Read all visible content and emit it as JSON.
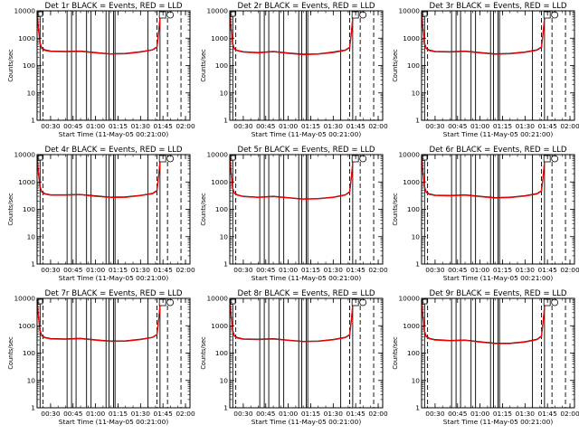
{
  "chart_data": {
    "type": "line",
    "grid": false,
    "y_scale": "log",
    "ylim": [
      1,
      10000
    ],
    "xlim": [
      "00:21:00",
      "02:03:00"
    ],
    "x_ticks": [
      "00:30",
      "00:45",
      "01:00",
      "01:15",
      "01:30",
      "01:45",
      "02:00"
    ],
    "y_ticks": [
      "1",
      "10",
      "100",
      "1000",
      "10000"
    ],
    "xlabel": "Start Time (11-May-05 00:21:00)",
    "ylabel": "Counts/sec",
    "vertical_markers_solid": [
      "00:23",
      "00:41",
      "00:44",
      "00:47",
      "00:54",
      "00:57",
      "01:07",
      "01:09",
      "01:12",
      "01:13",
      "01:35",
      "01:43"
    ],
    "vertical_markers_dashed": [
      "00:25",
      "01:41",
      "01:48",
      "01:57"
    ],
    "panels": [
      {
        "title": "Det 1r BLACK = Events, RED = LLD",
        "series": [
          {
            "color": "#000000",
            "x": [
              "00:21",
              "00:22",
              "00:23",
              "00:24",
              "00:26",
              "00:30",
              "00:40",
              "00:50",
              "01:00",
              "01:10",
              "01:20",
              "01:30",
              "01:38",
              "01:41",
              "01:42",
              "01:43",
              "01:44"
            ],
            "y": [
              9000,
              2000,
              700,
              450,
              380,
              340,
              330,
              340,
              300,
              270,
              280,
              320,
              380,
              480,
              1500,
              6000,
              10000
            ]
          },
          {
            "color": "#ff0000",
            "x": [
              "00:21",
              "00:22",
              "00:23",
              "00:24",
              "00:26",
              "00:30",
              "00:40",
              "00:50",
              "01:00",
              "01:10",
              "01:20",
              "01:30",
              "01:38",
              "01:41",
              "01:42",
              "01:43",
              "01:44"
            ],
            "y": [
              8500,
              1800,
              650,
              420,
              360,
              330,
              320,
              330,
              290,
              262,
              270,
              310,
              370,
              460,
              1400,
              5800,
              9500
            ]
          }
        ]
      },
      {
        "title": "Det 2r BLACK = Events, RED = LLD",
        "series": [
          {
            "color": "#000000",
            "x": [
              "00:21",
              "00:22",
              "00:23",
              "00:24",
              "00:26",
              "00:30",
              "00:40",
              "00:50",
              "01:00",
              "01:10",
              "01:20",
              "01:30",
              "01:38",
              "01:41",
              "01:42",
              "01:43",
              "01:44"
            ],
            "y": [
              9000,
              1800,
              650,
              420,
              360,
              320,
              300,
              330,
              290,
              260,
              270,
              310,
              370,
              470,
              1400,
              5500,
              9500
            ]
          },
          {
            "color": "#ff0000",
            "x": [
              "00:21",
              "00:22",
              "00:23",
              "00:24",
              "00:26",
              "00:30",
              "00:40",
              "00:50",
              "01:00",
              "01:10",
              "01:20",
              "01:30",
              "01:38",
              "01:41",
              "01:42",
              "01:43",
              "01:44"
            ],
            "y": [
              8500,
              1700,
              620,
              400,
              350,
              310,
              290,
              320,
              280,
              250,
              262,
              300,
              360,
              450,
              1300,
              5300,
              9000
            ]
          }
        ]
      },
      {
        "title": "Det 3r BLACK = Events, RED = LLD",
        "series": [
          {
            "color": "#000000",
            "x": [
              "00:21",
              "00:22",
              "00:23",
              "00:24",
              "00:26",
              "00:30",
              "00:40",
              "00:50",
              "01:00",
              "01:10",
              "01:20",
              "01:30",
              "01:38",
              "01:41",
              "01:42",
              "01:43",
              "01:44"
            ],
            "y": [
              9000,
              1900,
              680,
              440,
              370,
              330,
              320,
              340,
              300,
              268,
              278,
              315,
              375,
              480,
              1450,
              5800,
              9800
            ]
          },
          {
            "color": "#ff0000",
            "x": [
              "00:21",
              "00:22",
              "00:23",
              "00:24",
              "00:26",
              "00:30",
              "00:40",
              "00:50",
              "01:00",
              "01:10",
              "01:20",
              "01:30",
              "01:38",
              "01:41",
              "01:42",
              "01:43",
              "01:44"
            ],
            "y": [
              8600,
              1800,
              650,
              420,
              355,
              320,
              310,
              330,
              290,
              258,
              268,
              305,
              365,
              460,
              1380,
              5600,
              9400
            ]
          }
        ]
      },
      {
        "title": "Det 4r BLACK = Events, RED = LLD",
        "series": [
          {
            "color": "#000000",
            "x": [
              "00:21",
              "00:22",
              "00:23",
              "00:24",
              "00:26",
              "00:30",
              "00:40",
              "00:50",
              "01:00",
              "01:10",
              "01:20",
              "01:30",
              "01:38",
              "01:41",
              "01:42",
              "01:43",
              "01:44"
            ],
            "y": [
              9000,
              1900,
              700,
              450,
              380,
              340,
              340,
              350,
              310,
              280,
              285,
              325,
              385,
              490,
              1500,
              6000,
              10000
            ]
          },
          {
            "color": "#ff0000",
            "x": [
              "00:21",
              "00:22",
              "00:23",
              "00:24",
              "00:26",
              "00:30",
              "00:40",
              "00:50",
              "01:00",
              "01:10",
              "01:20",
              "01:30",
              "01:38",
              "01:41",
              "01:42",
              "01:43",
              "01:44"
            ],
            "y": [
              8600,
              1800,
              660,
              430,
              365,
              330,
              330,
              340,
              300,
              272,
              275,
              315,
              372,
              470,
              1420,
              5800,
              9600
            ]
          }
        ]
      },
      {
        "title": "Det 5r BLACK = Events, RED = LLD",
        "series": [
          {
            "color": "#000000",
            "x": [
              "00:21",
              "00:22",
              "00:23",
              "00:24",
              "00:26",
              "00:30",
              "00:40",
              "00:50",
              "01:00",
              "01:10",
              "01:20",
              "01:30",
              "01:38",
              "01:41",
              "01:42",
              "01:43",
              "01:44"
            ],
            "y": [
              8500,
              1700,
              600,
              400,
              340,
              300,
              280,
              300,
              270,
              240,
              250,
              280,
              340,
              440,
              1300,
              5200,
              9000
            ]
          },
          {
            "color": "#ff0000",
            "x": [
              "00:21",
              "00:22",
              "00:23",
              "00:24",
              "00:26",
              "00:30",
              "00:40",
              "00:50",
              "01:00",
              "01:10",
              "01:20",
              "01:30",
              "01:38",
              "01:41",
              "01:42",
              "01:43",
              "01:44"
            ],
            "y": [
              8000,
              1600,
              580,
              385,
              330,
              290,
              272,
              290,
              262,
              233,
              242,
              272,
              330,
              425,
              1250,
              5000,
              8600
            ]
          }
        ]
      },
      {
        "title": "Det 6r BLACK = Events, RED = LLD",
        "series": [
          {
            "color": "#000000",
            "x": [
              "00:21",
              "00:22",
              "00:23",
              "00:24",
              "00:26",
              "00:30",
              "00:40",
              "00:50",
              "01:00",
              "01:10",
              "01:20",
              "01:30",
              "01:38",
              "01:41",
              "01:42",
              "01:43",
              "01:44"
            ],
            "y": [
              9000,
              1900,
              680,
              440,
              370,
              330,
              320,
              340,
              300,
              268,
              278,
              315,
              375,
              480,
              1450,
              5800,
              9800
            ]
          },
          {
            "color": "#ff0000",
            "x": [
              "00:21",
              "00:22",
              "00:23",
              "00:24",
              "00:26",
              "00:30",
              "00:40",
              "00:50",
              "01:00",
              "01:10",
              "01:20",
              "01:30",
              "01:38",
              "01:41",
              "01:42",
              "01:43",
              "01:44"
            ],
            "y": [
              8600,
              1800,
              650,
              420,
              355,
              320,
              310,
              330,
              290,
              258,
              268,
              305,
              365,
              460,
              1380,
              5600,
              9400
            ]
          }
        ]
      },
      {
        "title": "Det 7r BLACK = Events, RED = LLD",
        "series": [
          {
            "color": "#000000",
            "x": [
              "00:21",
              "00:22",
              "00:23",
              "00:24",
              "00:26",
              "00:30",
              "00:40",
              "00:50",
              "01:00",
              "01:10",
              "01:20",
              "01:30",
              "01:38",
              "01:41",
              "01:42",
              "01:43",
              "01:44"
            ],
            "y": [
              9000,
              1900,
              700,
              450,
              380,
              340,
              330,
              345,
              305,
              275,
              282,
              320,
              380,
              485,
              1480,
              5900,
              10000
            ]
          },
          {
            "color": "#ff0000",
            "x": [
              "00:21",
              "00:22",
              "00:23",
              "00:24",
              "00:26",
              "00:30",
              "00:40",
              "00:50",
              "01:00",
              "01:10",
              "01:20",
              "01:30",
              "01:38",
              "01:41",
              "01:42",
              "01:43",
              "01:44"
            ],
            "y": [
              8600,
              1800,
              660,
              430,
              365,
              328,
              320,
              335,
              296,
              266,
              274,
              310,
              370,
              465,
              1400,
              5700,
              9600
            ]
          }
        ]
      },
      {
        "title": "Det 8r BLACK = Events, RED = LLD",
        "series": [
          {
            "color": "#000000",
            "x": [
              "00:21",
              "00:22",
              "00:23",
              "00:24",
              "00:26",
              "00:30",
              "00:40",
              "00:50",
              "01:00",
              "01:10",
              "01:20",
              "01:30",
              "01:38",
              "01:41",
              "01:42",
              "01:43",
              "01:44"
            ],
            "y": [
              9000,
              1850,
              680,
              440,
              370,
              330,
              320,
              335,
              298,
              268,
              276,
              315,
              375,
              478,
              1450,
              5800,
              9800
            ]
          },
          {
            "color": "#ff0000",
            "x": [
              "00:21",
              "00:22",
              "00:23",
              "00:24",
              "00:26",
              "00:30",
              "00:40",
              "00:50",
              "01:00",
              "01:10",
              "01:20",
              "01:30",
              "01:38",
              "01:41",
              "01:42",
              "01:43",
              "01:44"
            ],
            "y": [
              8600,
              1750,
              650,
              420,
              355,
              320,
              312,
              325,
              290,
              260,
              268,
              306,
              365,
              460,
              1380,
              5600,
              9400
            ]
          }
        ]
      },
      {
        "title": "Det 9r BLACK = Events, RED = LLD",
        "series": [
          {
            "color": "#000000",
            "x": [
              "00:21",
              "00:22",
              "00:23",
              "00:24",
              "00:26",
              "00:30",
              "00:40",
              "00:50",
              "01:00",
              "01:10",
              "01:20",
              "01:30",
              "01:38",
              "01:41",
              "01:42",
              "01:43",
              "01:44"
            ],
            "y": [
              9000,
              1800,
              650,
              420,
              350,
              310,
              290,
              300,
              260,
              230,
              230,
              260,
              320,
              420,
              1300,
              5200,
              9000
            ]
          },
          {
            "color": "#ff0000",
            "x": [
              "00:21",
              "00:22",
              "00:23",
              "00:24",
              "00:26",
              "00:30",
              "00:40",
              "00:50",
              "01:00",
              "01:10",
              "01:20",
              "01:30",
              "01:38",
              "01:41",
              "01:42",
              "01:43",
              "01:44"
            ],
            "y": [
              8500,
              1700,
              620,
              400,
              338,
              300,
              282,
              292,
              252,
              223,
              223,
              252,
              310,
              405,
              1250,
              5000,
              8600
            ]
          }
        ]
      }
    ]
  }
}
